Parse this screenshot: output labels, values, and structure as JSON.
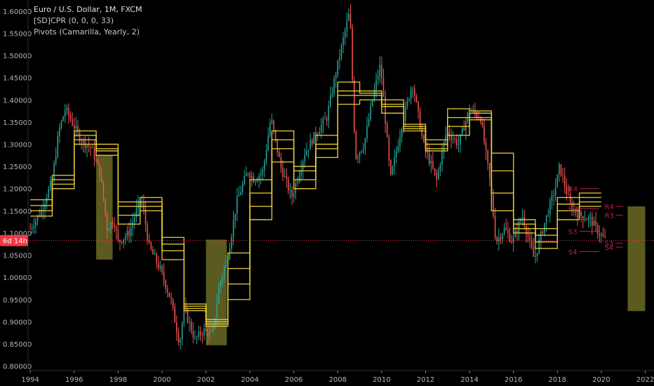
{
  "legend": {
    "title": "Euro / U.S. Dollar, 1M, FXCM",
    "indicator1": "[SD]CPR (0, 0, 0, 33)",
    "indicator2": "Pivots (Camarilla, Yearly, 2)"
  },
  "price_tag": "6d 14h",
  "colors": {
    "up": "#26a69a",
    "down": "#ef5350",
    "pivot": "#f0d43a",
    "shade": "#6b6a24",
    "tag": "#f23645",
    "level": "#c2185b"
  },
  "chart_data": {
    "type": "candlestick",
    "title": "Euro / U.S. Dollar, 1M, FXCM",
    "ylim": [
      0.79,
      1.625
    ],
    "xlim": [
      1993.9,
      2022.4
    ],
    "y_ticks": [
      "1.60000",
      "1.55000",
      "1.50000",
      "1.45000",
      "1.40000",
      "1.35000",
      "1.30000",
      "1.25000",
      "1.20000",
      "1.15000",
      "1.10000",
      "1.05000",
      "1.00000",
      "0.95000",
      "0.90000",
      "0.85000",
      "0.80000"
    ],
    "x_ticks": [
      "1994",
      "1996",
      "1998",
      "2000",
      "2002",
      "2004",
      "2006",
      "2008",
      "2010",
      "2012",
      "2014",
      "2016",
      "2018",
      "2020",
      "2022"
    ],
    "current_price": 1.083,
    "close_path": [
      [
        1994.0,
        1.11
      ],
      [
        1994.5,
        1.15
      ],
      [
        1995.0,
        1.22
      ],
      [
        1995.3,
        1.33
      ],
      [
        1995.6,
        1.38
      ],
      [
        1995.9,
        1.35
      ],
      [
        1996.3,
        1.31
      ],
      [
        1996.8,
        1.29
      ],
      [
        1997.2,
        1.23
      ],
      [
        1997.5,
        1.11
      ],
      [
        1997.8,
        1.13
      ],
      [
        1998.0,
        1.08
      ],
      [
        1998.5,
        1.1
      ],
      [
        1998.9,
        1.16
      ],
      [
        1999.1,
        1.17
      ],
      [
        1999.4,
        1.07
      ],
      [
        1999.9,
        1.02
      ],
      [
        2000.4,
        0.95
      ],
      [
        2000.8,
        0.85
      ],
      [
        2001.0,
        0.93
      ],
      [
        2001.5,
        0.86
      ],
      [
        2001.9,
        0.88
      ],
      [
        2002.3,
        0.87
      ],
      [
        2002.6,
        0.98
      ],
      [
        2003.0,
        1.05
      ],
      [
        2003.4,
        1.17
      ],
      [
        2003.9,
        1.24
      ],
      [
        2004.2,
        1.22
      ],
      [
        2004.6,
        1.24
      ],
      [
        2004.95,
        1.36
      ],
      [
        2005.4,
        1.25
      ],
      [
        2005.9,
        1.18
      ],
      [
        2006.5,
        1.28
      ],
      [
        2006.95,
        1.32
      ],
      [
        2007.5,
        1.36
      ],
      [
        2007.95,
        1.47
      ],
      [
        2008.4,
        1.57
      ],
      [
        2008.55,
        1.6
      ],
      [
        2008.8,
        1.27
      ],
      [
        2009.2,
        1.3
      ],
      [
        2009.7,
        1.43
      ],
      [
        2009.95,
        1.48
      ],
      [
        2010.4,
        1.22
      ],
      [
        2010.9,
        1.34
      ],
      [
        2011.4,
        1.44
      ],
      [
        2011.9,
        1.3
      ],
      [
        2012.5,
        1.22
      ],
      [
        2012.95,
        1.33
      ],
      [
        2013.5,
        1.3
      ],
      [
        2014.0,
        1.38
      ],
      [
        2014.5,
        1.36
      ],
      [
        2014.95,
        1.21
      ],
      [
        2015.2,
        1.08
      ],
      [
        2015.6,
        1.11
      ],
      [
        2015.95,
        1.08
      ],
      [
        2016.4,
        1.14
      ],
      [
        2016.95,
        1.04
      ],
      [
        2017.4,
        1.12
      ],
      [
        2017.9,
        1.2
      ],
      [
        2018.1,
        1.25
      ],
      [
        2018.6,
        1.16
      ],
      [
        2019.0,
        1.14
      ],
      [
        2019.5,
        1.13
      ],
      [
        2019.9,
        1.1
      ],
      [
        2020.2,
        1.083
      ]
    ],
    "pivot_bands": [
      {
        "x": [
          1994.0,
          1995.0
        ],
        "levels": [
          1.138,
          1.15,
          1.162,
          1.175
        ]
      },
      {
        "x": [
          1995.0,
          1996.0
        ],
        "levels": [
          1.2,
          1.21,
          1.22,
          1.23
        ]
      },
      {
        "x": [
          1996.0,
          1997.0
        ],
        "levels": [
          1.3,
          1.31,
          1.32,
          1.33
        ]
      },
      {
        "x": [
          1997.0,
          1998.0
        ],
        "levels": [
          1.275,
          1.285,
          1.29,
          1.3
        ]
      },
      {
        "x": [
          1998.0,
          1999.0
        ],
        "levels": [
          1.12,
          1.14,
          1.16,
          1.17
        ]
      },
      {
        "x": [
          1999.0,
          2000.0
        ],
        "levels": [
          1.15,
          1.16,
          1.17,
          1.18
        ]
      },
      {
        "x": [
          2000.0,
          2001.0
        ],
        "levels": [
          1.04,
          1.06,
          1.075,
          1.09
        ]
      },
      {
        "x": [
          2001.0,
          2002.0
        ],
        "levels": [
          0.925,
          0.93,
          0.935,
          0.94
        ]
      },
      {
        "x": [
          2002.0,
          2003.0
        ],
        "levels": [
          0.89,
          0.895,
          0.9,
          0.905
        ]
      },
      {
        "x": [
          2003.0,
          2004.0
        ],
        "levels": [
          0.95,
          0.985,
          1.02,
          1.055
        ]
      },
      {
        "x": [
          2004.0,
          2005.0
        ],
        "levels": [
          1.13,
          1.16,
          1.19,
          1.22
        ]
      },
      {
        "x": [
          2005.0,
          2006.0
        ],
        "levels": [
          1.26,
          1.29,
          1.31,
          1.33
        ]
      },
      {
        "x": [
          2006.0,
          2007.0
        ],
        "levels": [
          1.2,
          1.22,
          1.24,
          1.25
        ]
      },
      {
        "x": [
          2007.0,
          2008.0
        ],
        "levels": [
          1.27,
          1.29,
          1.3,
          1.32
        ]
      },
      {
        "x": [
          2008.0,
          2009.0
        ],
        "levels": [
          1.39,
          1.41,
          1.42,
          1.44
        ]
      },
      {
        "x": [
          2009.0,
          2010.0
        ],
        "levels": [
          1.4,
          1.41,
          1.415,
          1.42
        ]
      },
      {
        "x": [
          2010.0,
          2011.0
        ],
        "levels": [
          1.37,
          1.385,
          1.39,
          1.4
        ]
      },
      {
        "x": [
          2011.0,
          2012.0
        ],
        "levels": [
          1.33,
          1.335,
          1.34,
          1.345
        ]
      },
      {
        "x": [
          2012.0,
          2013.0
        ],
        "levels": [
          1.285,
          1.29,
          1.3,
          1.31
        ]
      },
      {
        "x": [
          2013.0,
          2014.0
        ],
        "levels": [
          1.32,
          1.34,
          1.36,
          1.38
        ]
      },
      {
        "x": [
          2014.0,
          2015.0
        ],
        "levels": [
          1.355,
          1.36,
          1.37,
          1.375
        ]
      },
      {
        "x": [
          2015.0,
          2016.0
        ],
        "levels": [
          1.15,
          1.19,
          1.24,
          1.28
        ]
      },
      {
        "x": [
          2016.0,
          2017.0
        ],
        "levels": [
          1.1,
          1.11,
          1.12,
          1.13
        ]
      },
      {
        "x": [
          2017.0,
          2018.0
        ],
        "levels": [
          1.065,
          1.08,
          1.095,
          1.11
        ]
      },
      {
        "x": [
          2018.0,
          2019.0
        ],
        "levels": [
          1.13,
          1.15,
          1.165,
          1.18
        ]
      },
      {
        "x": [
          2019.0,
          2020.0
        ],
        "levels": [
          1.16,
          1.17,
          1.18,
          1.19
        ]
      }
    ],
    "shaded_boxes": [
      {
        "x": [
          1997.0,
          1997.75
        ],
        "y": [
          1.04,
          1.275
        ]
      },
      {
        "x": [
          2002.0,
          2002.95
        ],
        "y": [
          0.847,
          1.085
        ]
      },
      {
        "x": [
          2021.2,
          2022.0
        ],
        "y": [
          0.924,
          1.16
        ]
      }
    ],
    "level_labels": [
      {
        "text": "R4",
        "x": 2018.5,
        "y": 1.2
      },
      {
        "text": "R3",
        "x": 2018.5,
        "y": 1.155
      },
      {
        "text": "S3",
        "x": 2018.5,
        "y": 1.104
      },
      {
        "text": "S4",
        "x": 2018.5,
        "y": 1.058
      },
      {
        "text": "R4",
        "x": 2020.15,
        "y": 1.16
      },
      {
        "text": "R3",
        "x": 2020.15,
        "y": 1.14
      },
      {
        "text": "S3",
        "x": 2020.15,
        "y": 1.077
      },
      {
        "text": "S4",
        "x": 2020.15,
        "y": 1.068
      }
    ]
  }
}
